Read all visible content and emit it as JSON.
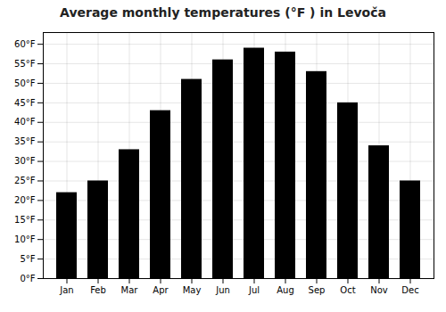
{
  "chart_data": {
    "type": "bar",
    "title": "Average monthly temperatures (°F ) in Levoča",
    "categories": [
      "Jan",
      "Feb",
      "Mar",
      "Apr",
      "May",
      "Jun",
      "Jul",
      "Aug",
      "Sep",
      "Oct",
      "Nov",
      "Dec"
    ],
    "values": [
      22,
      25,
      33,
      43,
      51,
      56,
      59,
      58,
      53,
      45,
      34,
      25
    ],
    "ylim": [
      0,
      63
    ],
    "yticks": [
      {
        "value": 0,
        "label": "0°F"
      },
      {
        "value": 5,
        "label": "5°F"
      },
      {
        "value": 10,
        "label": "10°F"
      },
      {
        "value": 15,
        "label": "15°F"
      },
      {
        "value": 20,
        "label": "20°F"
      },
      {
        "value": 25,
        "label": "25°F"
      },
      {
        "value": 30,
        "label": "30°F"
      },
      {
        "value": 35,
        "label": "35°F"
      },
      {
        "value": 40,
        "label": "40°F"
      },
      {
        "value": 45,
        "label": "45°F"
      },
      {
        "value": 50,
        "label": "50°F"
      },
      {
        "value": 55,
        "label": "55°F"
      },
      {
        "value": 60,
        "label": "60°F"
      }
    ],
    "grid": true
  }
}
